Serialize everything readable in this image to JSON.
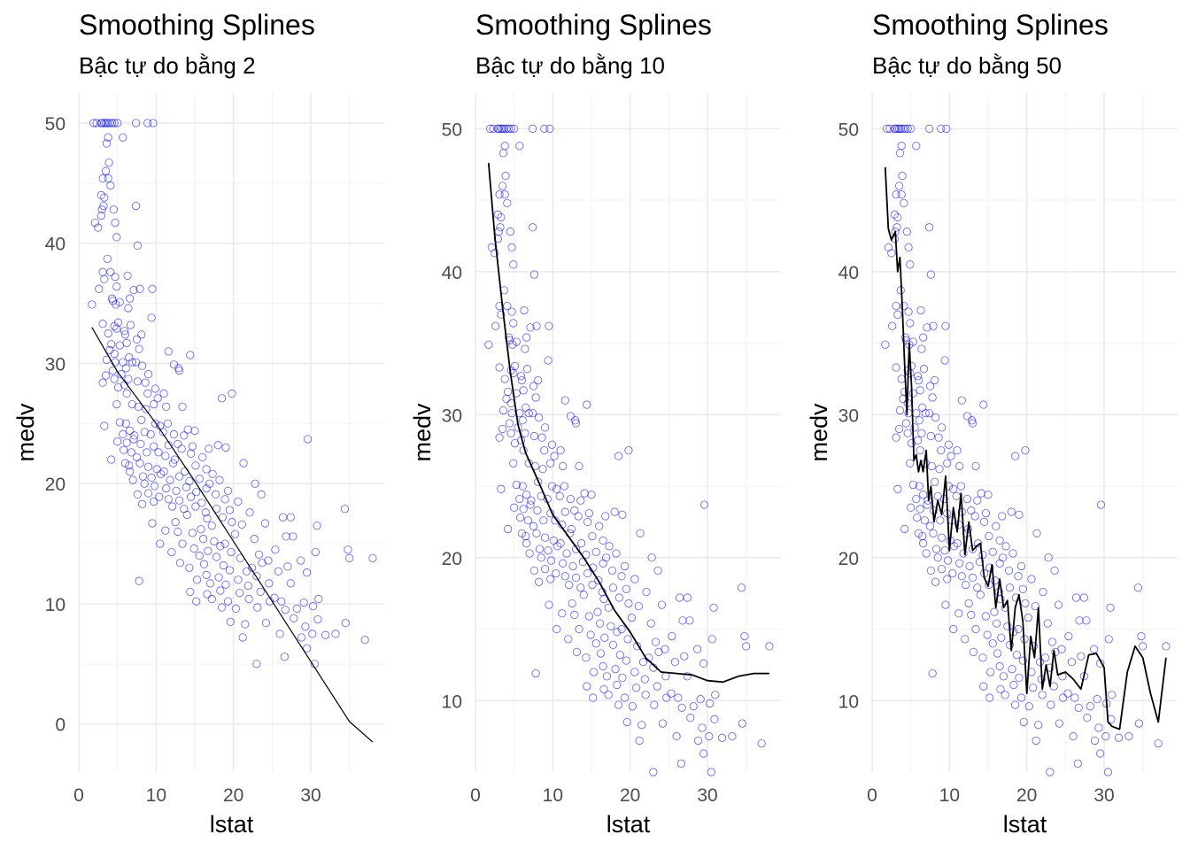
{
  "chart_data": [
    {
      "type": "scatter",
      "title": "Smoothing Splines",
      "subtitle": "Bậc tự do bằng 2",
      "xlabel": "lstat",
      "ylabel": "medv",
      "xlim": [
        0,
        39.5
      ],
      "ylim": [
        -4,
        52.5
      ],
      "xticks": [
        0,
        10,
        20,
        30
      ],
      "yticks": [
        0,
        10,
        20,
        30,
        40,
        50
      ],
      "grid": true,
      "point_color": "#0000ff",
      "line_color": "#000000",
      "points_ref": "scatter_points",
      "fit_line": {
        "x": [
          1.7,
          5,
          10,
          15,
          20,
          25,
          30,
          35,
          38
        ],
        "y": [
          33,
          29.3,
          25,
          20.2,
          15.2,
          10.2,
          5.2,
          0.2,
          -1.5
        ]
      }
    },
    {
      "type": "scatter",
      "title": "Smoothing Splines",
      "subtitle": "Bậc tự do bằng 10",
      "xlabel": "lstat",
      "ylabel": "medv",
      "xlim": [
        0,
        39.5
      ],
      "ylim": [
        5,
        52.5
      ],
      "xticks": [
        0,
        10,
        20,
        30
      ],
      "yticks": [
        10,
        20,
        30,
        40,
        50
      ],
      "grid": true,
      "point_color": "#0000ff",
      "line_color": "#000000",
      "points_ref": "scatter_points",
      "fit_line": {
        "x": [
          1.7,
          2.5,
          3.5,
          4.5,
          5.5,
          6.5,
          8,
          10,
          12,
          14,
          16,
          18,
          20,
          22,
          24,
          26,
          28,
          30,
          32,
          34,
          36,
          38
        ],
        "y": [
          47.6,
          42.5,
          37.5,
          33,
          29.3,
          27.3,
          25.5,
          23,
          21.5,
          20,
          18.3,
          16.3,
          14.8,
          13,
          12,
          11.9,
          11.8,
          11.4,
          11.3,
          11.7,
          11.9,
          11.9
        ]
      }
    },
    {
      "type": "scatter",
      "title": "Smoothing Splines",
      "subtitle": "Bậc tự do bằng 50",
      "xlabel": "lstat",
      "ylabel": "medv",
      "xlim": [
        0,
        39.5
      ],
      "ylim": [
        5,
        52.5
      ],
      "xticks": [
        0,
        10,
        20,
        30
      ],
      "yticks": [
        10,
        20,
        30,
        40,
        50
      ],
      "grid": true,
      "point_color": "#0000ff",
      "line_color": "#000000",
      "points_ref": "scatter_points",
      "fit_line": {
        "x": [
          1.7,
          2.1,
          2.5,
          3,
          3.3,
          3.6,
          3.9,
          4.2,
          4.5,
          4.8,
          5.1,
          5.4,
          5.7,
          6,
          6.3,
          6.6,
          7,
          7.3,
          7.6,
          8,
          8.5,
          9,
          9.5,
          10,
          10.5,
          11,
          11.5,
          12,
          12.5,
          13,
          13.5,
          14,
          14.5,
          15,
          15.5,
          16,
          16.5,
          17,
          17.5,
          18,
          18.5,
          19,
          19.5,
          20,
          20.5,
          21,
          21.5,
          22,
          22.5,
          23,
          23.5,
          24,
          25,
          26,
          27,
          28,
          29,
          30,
          30.5,
          31,
          32,
          33,
          34,
          35,
          36,
          37,
          38
        ],
        "y": [
          47.3,
          43,
          42.2,
          42.8,
          40,
          41,
          37.5,
          33.5,
          30,
          35,
          32,
          26.8,
          27.2,
          26,
          26.8,
          26,
          27.5,
          24,
          25,
          22.5,
          24,
          23,
          25.7,
          20.5,
          23.5,
          21.8,
          24.5,
          20.2,
          22.5,
          20.5,
          20.8,
          21,
          18.6,
          18,
          19.5,
          16.5,
          18.5,
          16.5,
          17,
          13.5,
          16.5,
          17.4,
          15.5,
          10.5,
          14.5,
          13,
          16.5,
          10.8,
          12.5,
          11,
          13.5,
          11.8,
          12,
          11.5,
          10.8,
          13.2,
          13.3,
          12.3,
          8.5,
          8.2,
          8,
          12,
          13.8,
          13,
          10.5,
          8.5,
          13
        ]
      }
    }
  ],
  "scatter_points": [
    [
      1.9,
      50
    ],
    [
      2.3,
      50
    ],
    [
      2.9,
      50
    ],
    [
      3.0,
      50
    ],
    [
      3.3,
      50
    ],
    [
      3.5,
      50
    ],
    [
      3.7,
      50
    ],
    [
      4.0,
      50
    ],
    [
      4.3,
      50
    ],
    [
      4.6,
      50
    ],
    [
      5.0,
      50
    ],
    [
      7.4,
      50
    ],
    [
      8.9,
      50
    ],
    [
      9.6,
      50
    ],
    [
      3.8,
      48.8
    ],
    [
      3.6,
      48.3
    ],
    [
      5.7,
      48.8
    ],
    [
      3.9,
      46.7
    ],
    [
      3.5,
      46.0
    ],
    [
      3.1,
      45.4
    ],
    [
      3.8,
      45.4
    ],
    [
      4.1,
      44.8
    ],
    [
      2.9,
      44.0
    ],
    [
      3.3,
      43.8
    ],
    [
      3.2,
      43.1
    ],
    [
      3.0,
      42.8
    ],
    [
      2.9,
      42.3
    ],
    [
      4.5,
      42.8
    ],
    [
      2.1,
      41.7
    ],
    [
      2.5,
      41.3
    ],
    [
      7.4,
      43.1
    ],
    [
      4.7,
      41.7
    ],
    [
      4.9,
      40.5
    ],
    [
      7.6,
      39.8
    ],
    [
      3.7,
      38.7
    ],
    [
      4.1,
      37.6
    ],
    [
      3.1,
      37.6
    ],
    [
      4.7,
      37.2
    ],
    [
      3.3,
      37.0
    ],
    [
      6.3,
      37.3
    ],
    [
      4.9,
      36.4
    ],
    [
      2.6,
      36.2
    ],
    [
      7.1,
      36.1
    ],
    [
      9.5,
      36.2
    ],
    [
      7.9,
      36.2
    ],
    [
      4.3,
      35.4
    ],
    [
      4.4,
      35.2
    ],
    [
      5.3,
      35.1
    ],
    [
      1.7,
      34.9
    ],
    [
      6.6,
      35.4
    ],
    [
      4.8,
      34.9
    ],
    [
      6.4,
      34.6
    ],
    [
      9.4,
      33.8
    ],
    [
      5.1,
      33.4
    ],
    [
      3.1,
      33.3
    ],
    [
      4.6,
      33.1
    ],
    [
      4.9,
      32.9
    ],
    [
      6.7,
      33.2
    ],
    [
      5.9,
      32.7
    ],
    [
      6.0,
      32.4
    ],
    [
      3.8,
      32.5
    ],
    [
      7.5,
      32.0
    ],
    [
      8.1,
      32.4
    ],
    [
      4.2,
      31.6
    ],
    [
      5.3,
      31.5
    ],
    [
      6.2,
      31.7
    ],
    [
      7.8,
      31.2
    ],
    [
      11.6,
      31.0
    ],
    [
      4.0,
      31.1
    ],
    [
      4.6,
      30.8
    ],
    [
      6.5,
      30.5
    ],
    [
      6.9,
      30.1
    ],
    [
      7.4,
      30.1
    ],
    [
      3.6,
      30.3
    ],
    [
      4.7,
      30.1
    ],
    [
      5.7,
      30.1
    ],
    [
      6.1,
      29.6
    ],
    [
      8.2,
      29.8
    ],
    [
      12.3,
      29.9
    ],
    [
      14.4,
      30.7
    ],
    [
      4.4,
      29.4
    ],
    [
      5.5,
      29.1
    ],
    [
      3.5,
      29.0
    ],
    [
      9.0,
      29.1
    ],
    [
      12.9,
      29.6
    ],
    [
      13.0,
      29.4
    ],
    [
      4.6,
      28.7
    ],
    [
      6.4,
      28.7
    ],
    [
      7.6,
      28.5
    ],
    [
      3.1,
      28.4
    ],
    [
      5.1,
      28.0
    ],
    [
      5.9,
      28.2
    ],
    [
      8.6,
      28.4
    ],
    [
      9.9,
      27.9
    ],
    [
      6.2,
      27.5
    ],
    [
      8.9,
      27.5
    ],
    [
      10.2,
      27.1
    ],
    [
      11.0,
      27.5
    ],
    [
      19.8,
      27.5
    ],
    [
      18.5,
      27.1
    ],
    [
      4.9,
      26.6
    ],
    [
      6.9,
      26.6
    ],
    [
      7.7,
      26.4
    ],
    [
      8.7,
      26.2
    ],
    [
      9.7,
      26.6
    ],
    [
      11.3,
      26.4
    ],
    [
      13.4,
      26.4
    ],
    [
      6.1,
      25.0
    ],
    [
      5.3,
      25.1
    ],
    [
      8.1,
      25.3
    ],
    [
      9.9,
      25.0
    ],
    [
      10.5,
      24.8
    ],
    [
      11.5,
      25.0
    ],
    [
      3.3,
      24.8
    ],
    [
      14.1,
      24.5
    ],
    [
      15.0,
      24.4
    ],
    [
      5.7,
      24.1
    ],
    [
      6.6,
      24.4
    ],
    [
      7.2,
      24.0
    ],
    [
      8.5,
      24.3
    ],
    [
      9.3,
      24.1
    ],
    [
      10.9,
      24.3
    ],
    [
      12.3,
      24.1
    ],
    [
      13.6,
      24.0
    ],
    [
      29.6,
      23.7
    ],
    [
      5.0,
      23.5
    ],
    [
      6.2,
      23.4
    ],
    [
      7.1,
      23.7
    ],
    [
      8.0,
      23.3
    ],
    [
      9.7,
      23.1
    ],
    [
      11.6,
      23.2
    ],
    [
      12.8,
      23.3
    ],
    [
      14.7,
      23.1
    ],
    [
      16.8,
      22.9
    ],
    [
      18.0,
      23.2
    ],
    [
      19.0,
      23.0
    ],
    [
      5.8,
      22.8
    ],
    [
      6.8,
      22.6
    ],
    [
      7.5,
      22.2
    ],
    [
      8.8,
      22.6
    ],
    [
      10.3,
      22.6
    ],
    [
      11.2,
      22.3
    ],
    [
      12.4,
      22.0
    ],
    [
      13.3,
      22.9
    ],
    [
      14.5,
      22.5
    ],
    [
      16.0,
      22.2
    ],
    [
      21.3,
      21.7
    ],
    [
      4.2,
      22.0
    ],
    [
      6.0,
      21.7
    ],
    [
      6.5,
      21.5
    ],
    [
      7.9,
      21.7
    ],
    [
      9.0,
      21.4
    ],
    [
      10.1,
      21.2
    ],
    [
      11.0,
      21.0
    ],
    [
      12.2,
      21.7
    ],
    [
      13.7,
      21.0
    ],
    [
      15.1,
      21.5
    ],
    [
      16.5,
      21.2
    ],
    [
      17.3,
      20.8
    ],
    [
      6.6,
      21.0
    ],
    [
      8.3,
      20.6
    ],
    [
      9.4,
      20.5
    ],
    [
      10.6,
      20.8
    ],
    [
      11.8,
      20.3
    ],
    [
      13.0,
      20.6
    ],
    [
      14.3,
      20.2
    ],
    [
      15.6,
      20.4
    ],
    [
      16.9,
      20.0
    ],
    [
      18.2,
      20.3
    ],
    [
      22.8,
      20.0
    ],
    [
      7.0,
      20.3
    ],
    [
      8.5,
      20.0
    ],
    [
      9.8,
      19.8
    ],
    [
      11.3,
      19.6
    ],
    [
      12.6,
      19.4
    ],
    [
      13.9,
      19.7
    ],
    [
      15.2,
      19.3
    ],
    [
      16.5,
      19.6
    ],
    [
      17.7,
      19.1
    ],
    [
      19.3,
      19.4
    ],
    [
      23.6,
      19.1
    ],
    [
      7.6,
      19.1
    ],
    [
      9.0,
      19.2
    ],
    [
      10.4,
      18.9
    ],
    [
      11.6,
      18.7
    ],
    [
      13.0,
      18.6
    ],
    [
      14.5,
      18.9
    ],
    [
      15.9,
      18.4
    ],
    [
      18.9,
      18.7
    ],
    [
      20.6,
      18.5
    ],
    [
      8.2,
      18.3
    ],
    [
      9.7,
      18.5
    ],
    [
      12.1,
      18.1
    ],
    [
      13.6,
      17.9
    ],
    [
      15.1,
      18.1
    ],
    [
      16.4,
      17.6
    ],
    [
      17.8,
      17.9
    ],
    [
      19.5,
      17.8
    ],
    [
      22.1,
      17.6
    ],
    [
      26.4,
      17.2
    ],
    [
      27.4,
      17.2
    ],
    [
      34.4,
      17.9
    ],
    [
      14.0,
      17.4
    ],
    [
      16.6,
      17.1
    ],
    [
      18.6,
      17.2
    ],
    [
      19.8,
      16.8
    ],
    [
      24.1,
      16.7
    ],
    [
      12.5,
      16.8
    ],
    [
      15.8,
      16.2
    ],
    [
      17.2,
      16.5
    ],
    [
      21.1,
      16.6
    ],
    [
      9.5,
      16.7
    ],
    [
      11.2,
      16.1
    ],
    [
      12.8,
      16.0
    ],
    [
      14.7,
      15.9
    ],
    [
      20.2,
      15.8
    ],
    [
      22.7,
      15.4
    ],
    [
      26.8,
      15.6
    ],
    [
      27.7,
      15.6
    ],
    [
      30.8,
      16.5
    ],
    [
      16.1,
      15.4
    ],
    [
      17.5,
      15.2
    ],
    [
      18.9,
      15.0
    ],
    [
      13.4,
      15.0
    ],
    [
      10.5,
      15.0
    ],
    [
      14.9,
      14.6
    ],
    [
      16.7,
      14.4
    ],
    [
      18.3,
      14.8
    ],
    [
      19.7,
      14.3
    ],
    [
      23.3,
      14.1
    ],
    [
      25.4,
      14.5
    ],
    [
      30.6,
      14.3
    ],
    [
      34.8,
      14.5
    ],
    [
      12.0,
      14.3
    ],
    [
      15.6,
      14.0
    ],
    [
      17.8,
      13.9
    ],
    [
      20.9,
      13.8
    ],
    [
      24.5,
      13.6
    ],
    [
      28.7,
      13.6
    ],
    [
      35.0,
      13.8
    ],
    [
      38.0,
      13.8
    ],
    [
      13.1,
      13.4
    ],
    [
      16.2,
      13.3
    ],
    [
      18.7,
      13.2
    ],
    [
      22.4,
      13.0
    ],
    [
      23.7,
      13.4
    ],
    [
      27.0,
      13.1
    ],
    [
      14.3,
      13.0
    ],
    [
      19.5,
      12.8
    ],
    [
      21.7,
      12.7
    ],
    [
      25.8,
      12.7
    ],
    [
      29.5,
      12.6
    ],
    [
      16.5,
      12.4
    ],
    [
      18.1,
      12.2
    ],
    [
      20.6,
      12.0
    ],
    [
      23.0,
      12.3
    ],
    [
      7.8,
      11.9
    ],
    [
      15.3,
      12.0
    ],
    [
      17.0,
      11.7
    ],
    [
      19.0,
      11.6
    ],
    [
      21.9,
      11.5
    ],
    [
      24.6,
      11.7
    ],
    [
      27.4,
      11.7
    ],
    [
      14.4,
      11.0
    ],
    [
      16.6,
      10.8
    ],
    [
      18.3,
      11.1
    ],
    [
      20.8,
      10.9
    ],
    [
      23.5,
      11.0
    ],
    [
      25.3,
      10.5
    ],
    [
      26.2,
      10.2
    ],
    [
      17.2,
      10.4
    ],
    [
      15.2,
      10.2
    ],
    [
      19.3,
      10.2
    ],
    [
      22.0,
      10.4
    ],
    [
      24.7,
      10.2
    ],
    [
      29.1,
      10.1
    ],
    [
      31.0,
      10.4
    ],
    [
      23.1,
      9.7
    ],
    [
      26.7,
      9.5
    ],
    [
      28.2,
      9.6
    ],
    [
      30.3,
      9.8
    ],
    [
      20.3,
      9.6
    ],
    [
      18.5,
      9.7
    ],
    [
      27.8,
      8.8
    ],
    [
      30.9,
      8.7
    ],
    [
      19.6,
      8.5
    ],
    [
      24.2,
      8.4
    ],
    [
      29.3,
      8.1
    ],
    [
      34.5,
      8.4
    ],
    [
      21.5,
      8.3
    ],
    [
      26.0,
      7.5
    ],
    [
      28.8,
      7.2
    ],
    [
      30.2,
      7.5
    ],
    [
      31.9,
      7.4
    ],
    [
      33.2,
      7.5
    ],
    [
      37.0,
      7.0
    ],
    [
      21.2,
      7.2
    ],
    [
      29.5,
      6.3
    ],
    [
      26.6,
      5.6
    ],
    [
      30.5,
      5.0
    ],
    [
      23.0,
      5.0
    ]
  ]
}
